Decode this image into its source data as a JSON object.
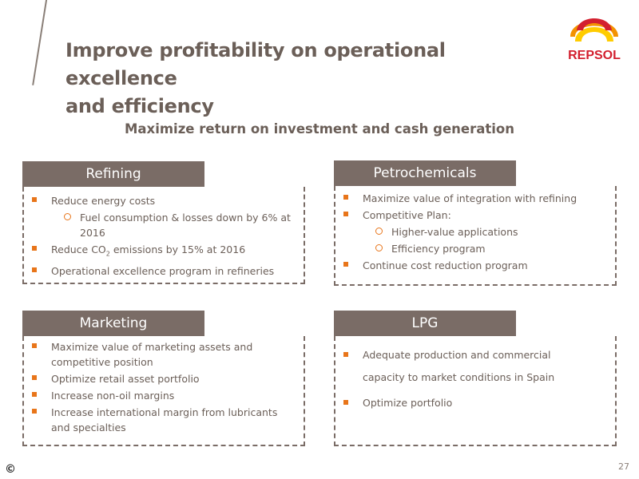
{
  "slide": {
    "title_line1": "Improve profitability on operational excellence",
    "title_line2": "and efficiency",
    "subtitle": "Maximize return on investment and cash generation",
    "logo_text": "REPSOL",
    "copyright": "©",
    "page_number": "27"
  },
  "refining": {
    "header": "Refining",
    "b1": "Reduce energy costs",
    "s1": "Fuel consumption & losses down by 6% at 2016",
    "b2_pre": "Reduce CO",
    "b2_sub": "2",
    "b2_post": " emissions by 15% at 2016",
    "b3": "Operational excellence program  in refineries"
  },
  "petrochemicals": {
    "header": "Petrochemicals",
    "b1": "Maximize value of integration with refining",
    "b2": "Competitive Plan:",
    "s1": "Higher-value applications",
    "s2": "Efficiency program",
    "b3": "Continue cost reduction program"
  },
  "marketing": {
    "header": "Marketing",
    "b1": "Maximize value of marketing assets and competitive position",
    "b2": "Optimize retail asset portfolio",
    "b3": "Increase non-oil margins",
    "b4": "Increase international margin from lubricants and specialties"
  },
  "lpg": {
    "header": "LPG",
    "b1": "Adequate production and commercial capacity to market conditions in Spain",
    "b2": "Optimize portfolio"
  },
  "colors": {
    "header_fill": "#7a6c66",
    "bullet_orange": "#e8751a",
    "logo_red": "#d3202f",
    "logo_orange": "#f39200",
    "logo_yellow": "#ffcc00"
  }
}
